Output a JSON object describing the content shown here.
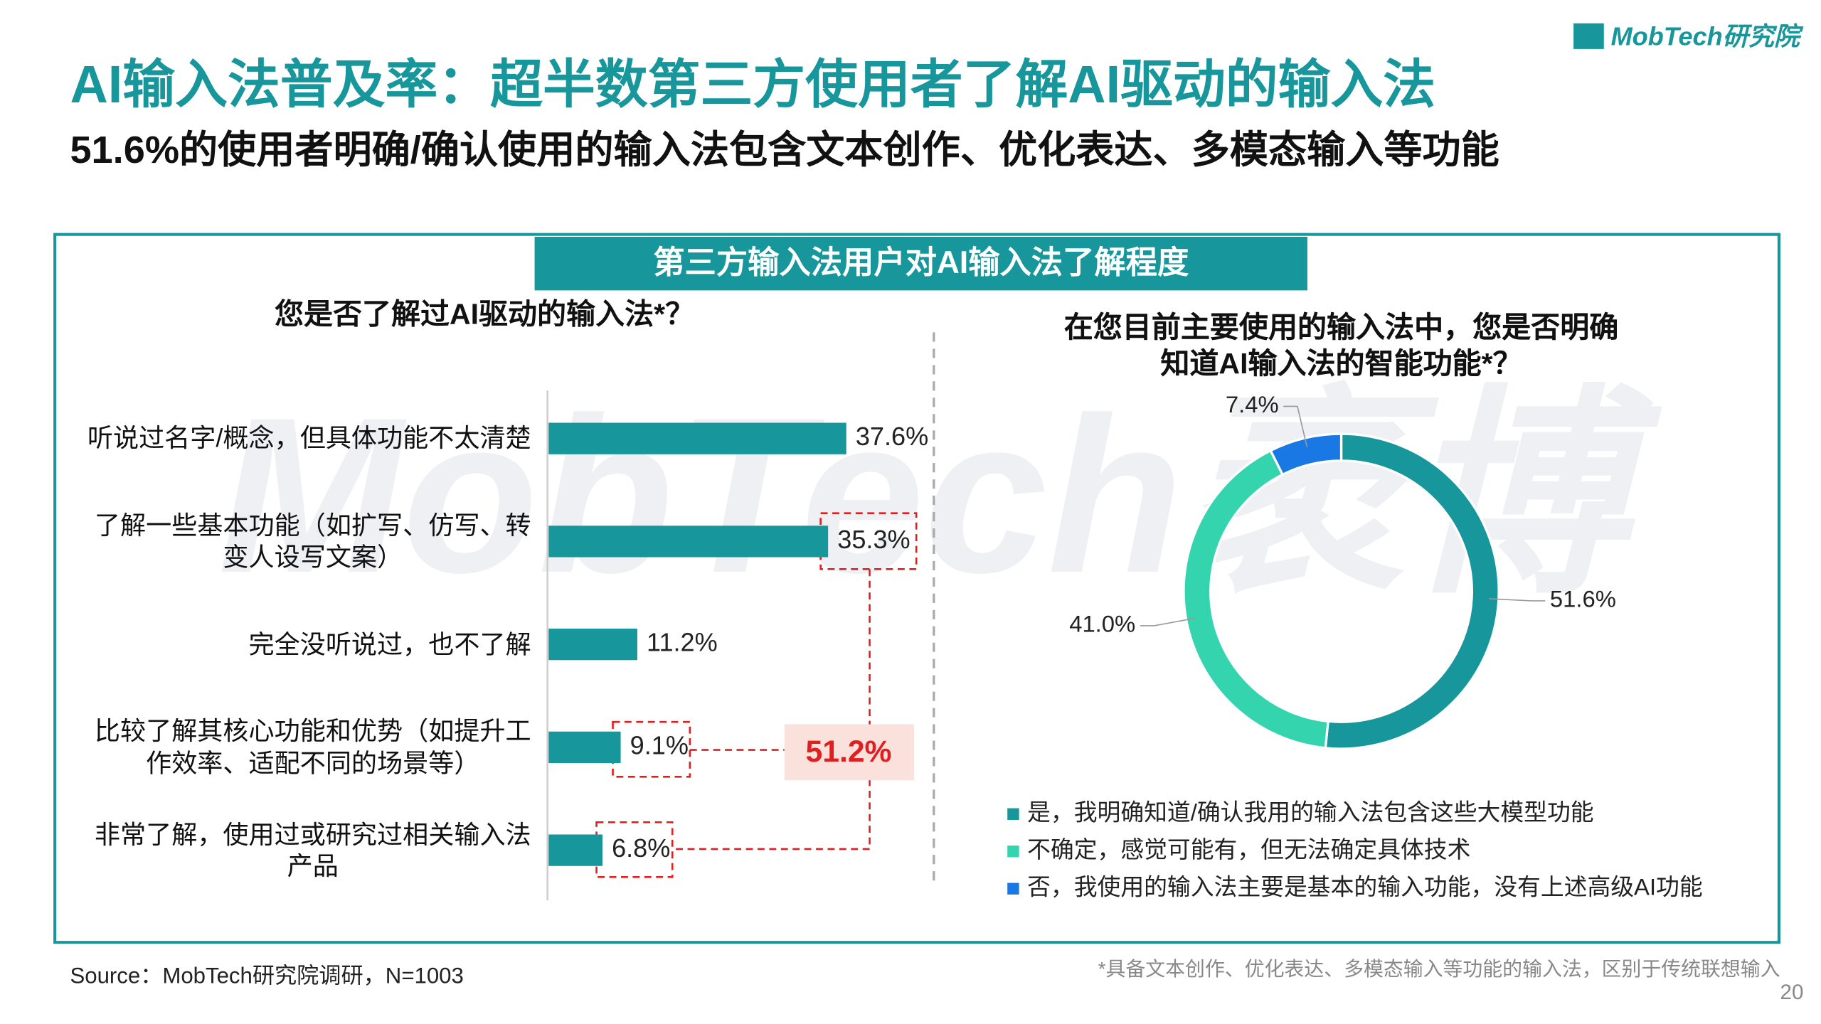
{
  "logo": "MobTech研究院",
  "header": {
    "title": "AI输入法普及率：超半数第三方使用者了解AI驱动的输入法",
    "subtitle": "51.6%的使用者明确/确认使用的输入法包含文本创作、优化表达、多模态输入等功能"
  },
  "panel_title": "第三方输入法用户对AI输入法了解程度",
  "watermark": "MobTech袤博",
  "chart_data": [
    {
      "type": "bar",
      "orientation": "horizontal",
      "title": "您是否了解过AI驱动的输入法*？",
      "categories": [
        "听说过名字/概念，但具体功能不太清楚",
        "了解一些基本功能（如扩写、仿写、转\n变人设写文案）",
        "完全没听说过，也不了解",
        "比较了解其核心功能和优势（如提升工\n作效率、适配不同的场景等）",
        "非常了解，使用过或研究过相关输入法\n产品"
      ],
      "values": [
        37.6,
        35.3,
        11.2,
        9.1,
        6.8
      ],
      "value_labels": [
        "37.6%",
        "35.3%",
        "11.2%",
        "9.1%",
        "6.8%"
      ],
      "color": "#17979b",
      "annotation": {
        "text": "51.2%",
        "value": 51.2
      }
    },
    {
      "type": "donut",
      "title": "在您目前主要使用的输入法中，您是否明确\n知道AI输入法的智能功能*？",
      "categories": [
        "是，我明确知道/确认我用的输入法包含这些大模型功能",
        "不确定，感觉可能有，但无法确定具体技术",
        "否，我使用的输入法主要是基本的输入功能，没有上述高级AI功能"
      ],
      "values": [
        51.6,
        41.0,
        7.4
      ],
      "value_labels": [
        "51.6%",
        "41.0%",
        "7.4%"
      ],
      "colors": [
        "#17979b",
        "#34d5ae",
        "#1a78e4"
      ]
    }
  ],
  "source": "Source：MobTech研究院调研，N=1003",
  "footnote": "*具备文本创作、优化表达、多模态输入等功能的输入法，区别于传统联想输入",
  "page_number": "20"
}
